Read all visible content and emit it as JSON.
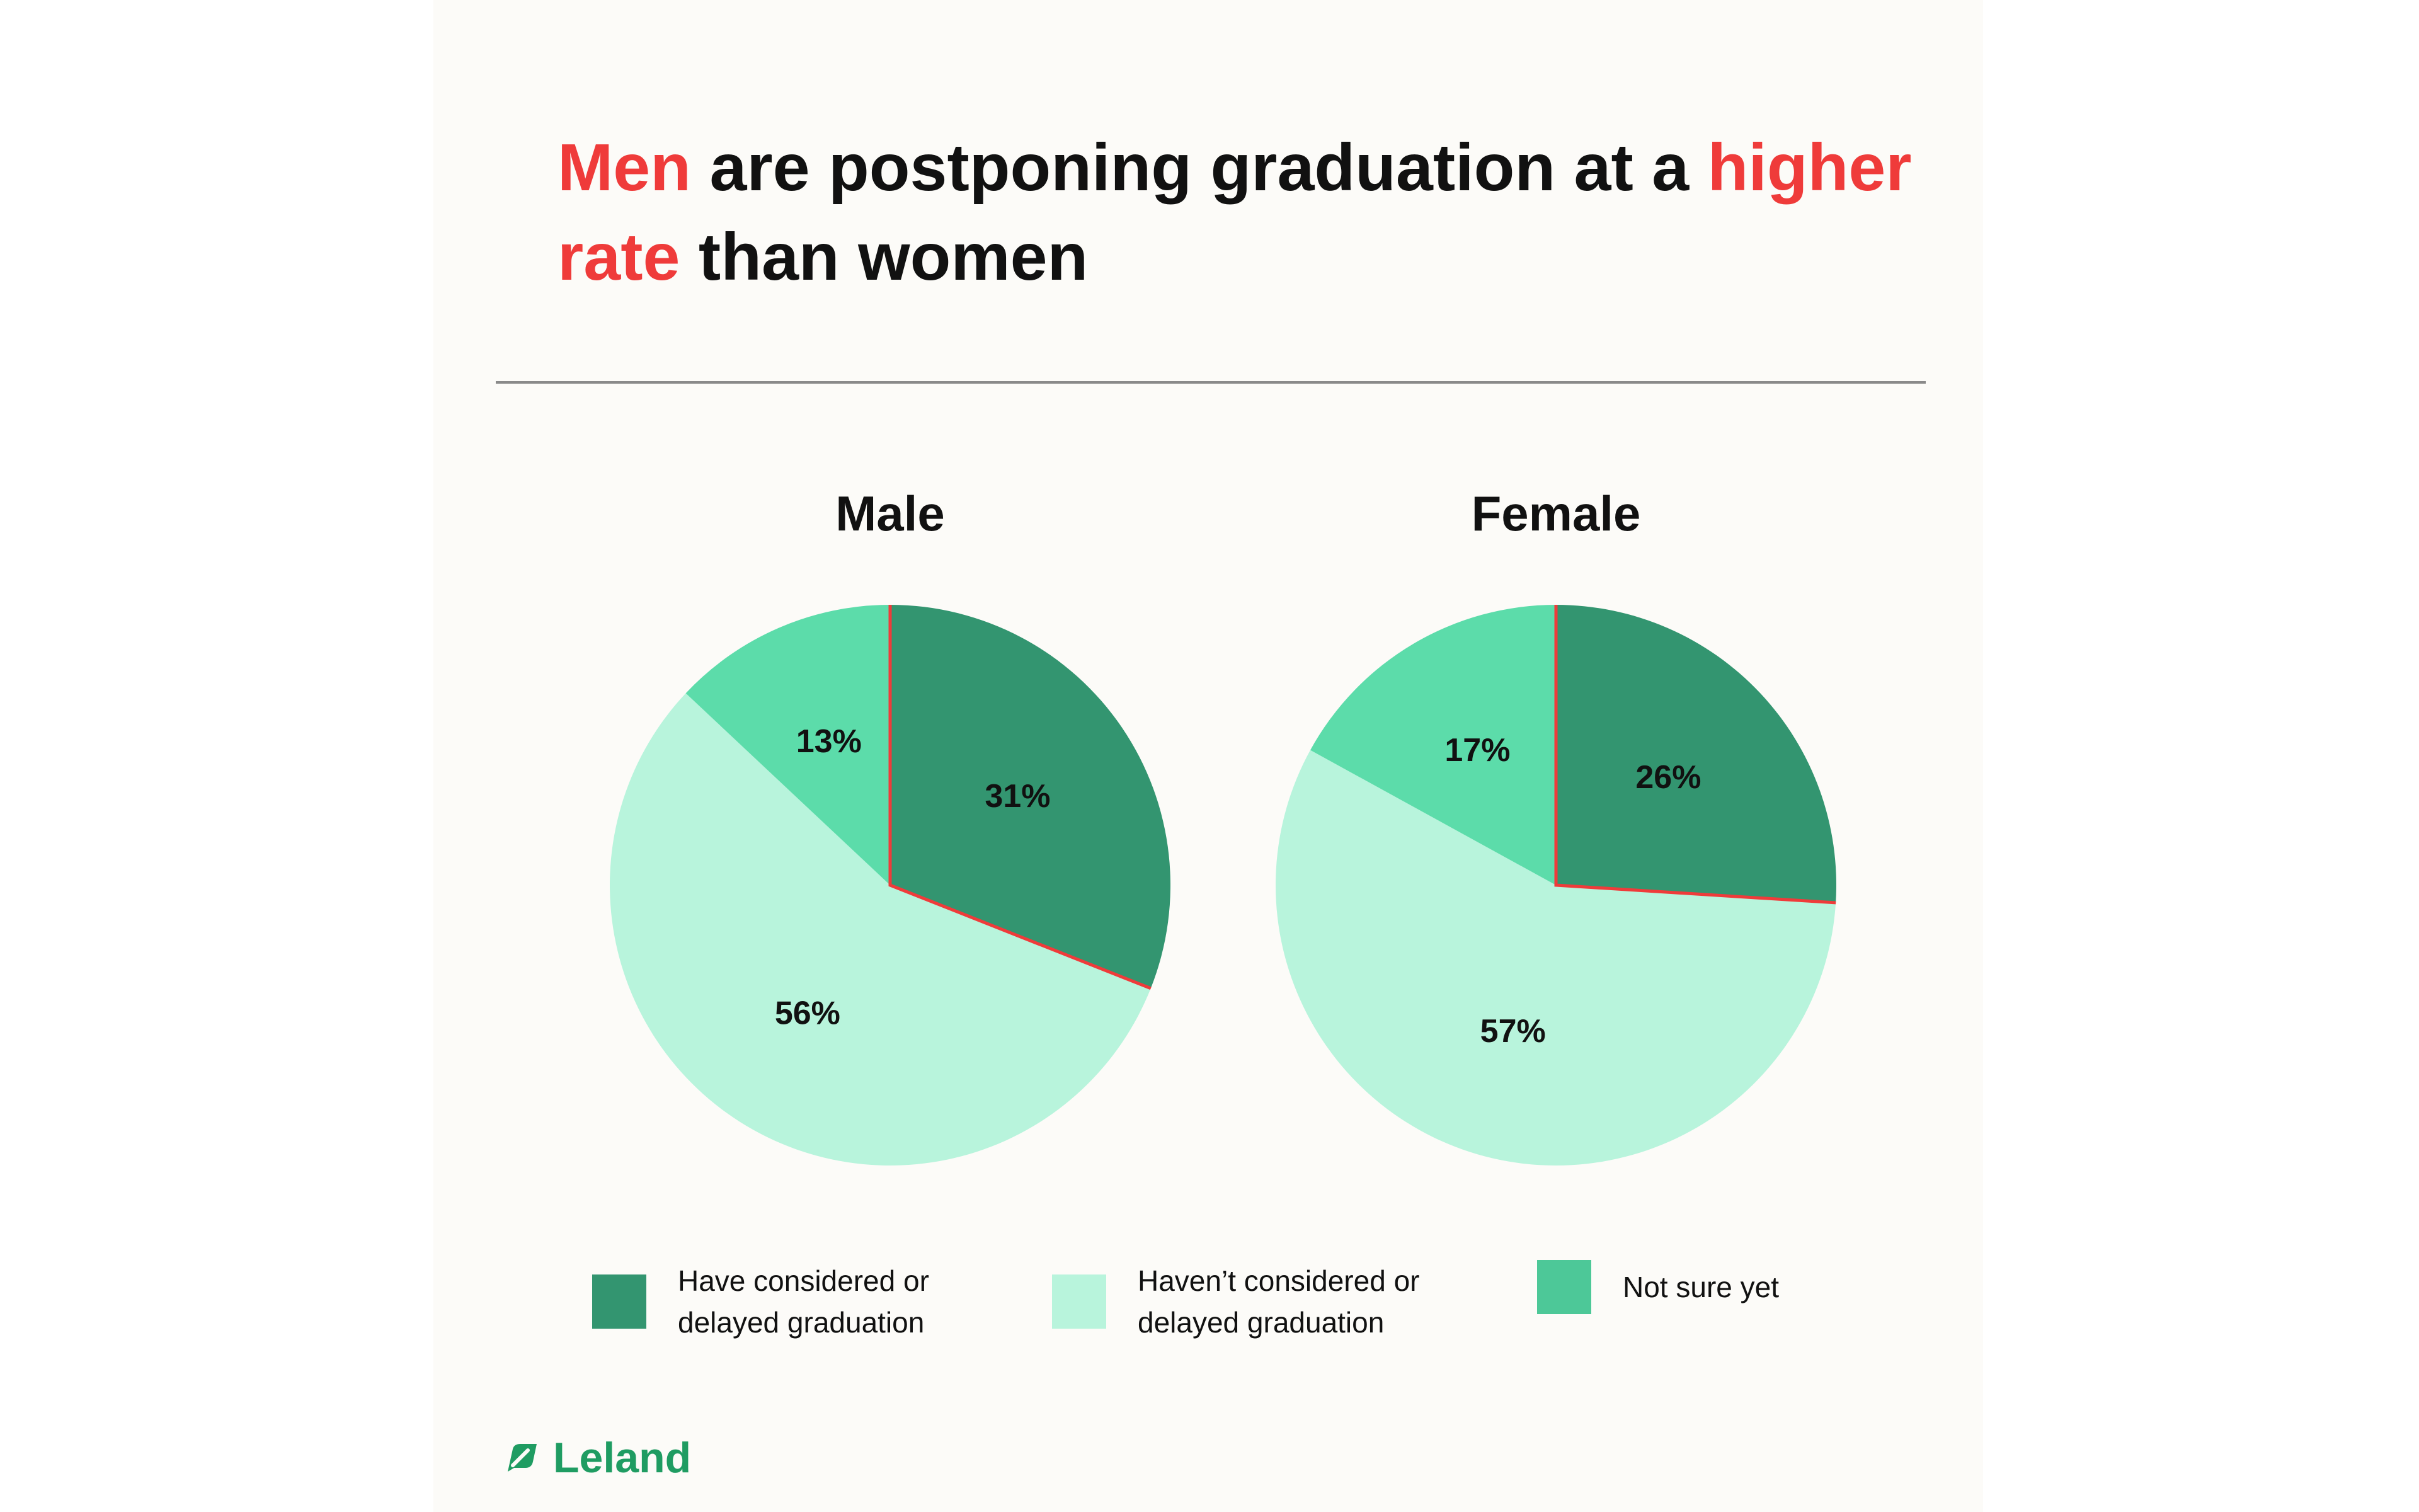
{
  "title": {
    "segments": [
      {
        "text": "Men",
        "highlight": true
      },
      {
        "text": " are postponing graduation at a ",
        "highlight": false
      },
      {
        "text": "higher rate",
        "highlight": true
      },
      {
        "text": " than women",
        "highlight": false
      }
    ]
  },
  "colors": {
    "considered": "#339570",
    "not_considered": "#b8f4dc",
    "not_sure": "#5cdcaa",
    "highlight": "#ef3b3a",
    "brand": "#1f9c62"
  },
  "legend": [
    {
      "label": "Have considered or\ndelayed graduation",
      "color": "#339570"
    },
    {
      "label": "Haven’t considered or\ndelayed graduation",
      "color": "#b8f4dc"
    },
    {
      "label": "Not sure yet",
      "color": "#4dc898"
    }
  ],
  "chart_data": [
    {
      "type": "pie",
      "title": "Male",
      "categories": [
        "Have considered or delayed graduation",
        "Haven’t considered or delayed graduation",
        "Not sure yet"
      ],
      "values": [
        31,
        56,
        13
      ],
      "labels": [
        "31%",
        "56%",
        "13%"
      ],
      "colors": [
        "#339570",
        "#b8f4dc",
        "#5cdcaa"
      ]
    },
    {
      "type": "pie",
      "title": "Female",
      "categories": [
        "Have considered or delayed graduation",
        "Haven’t considered or delayed graduation",
        "Not sure yet"
      ],
      "values": [
        26,
        57,
        17
      ],
      "labels": [
        "26%",
        "57%",
        "17%"
      ],
      "colors": [
        "#339570",
        "#b8f4dc",
        "#5cdcaa"
      ]
    }
  ],
  "logo": {
    "text": "Leland",
    "icon": "leaf-icon"
  }
}
